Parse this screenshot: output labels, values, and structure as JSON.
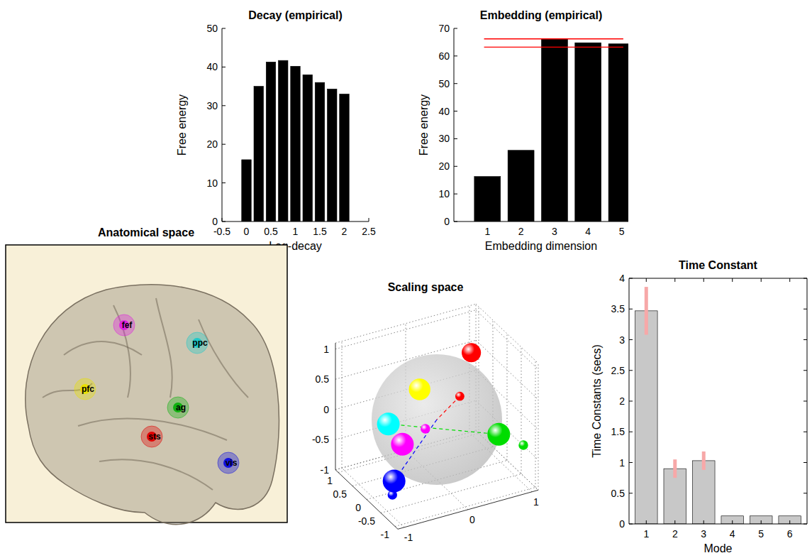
{
  "chart_data": [
    {
      "type": "bar",
      "title": "Decay (empirical)",
      "x_label": "Log-decay",
      "y_label": "Free energy",
      "x": [
        0,
        0.25,
        0.5,
        0.75,
        1,
        1.25,
        1.5,
        1.75,
        2
      ],
      "values": [
        16,
        35,
        41.3,
        41.7,
        40.2,
        38,
        36,
        34.3,
        33
      ],
      "color": "#000000",
      "xlim": [
        -0.5,
        2.5
      ],
      "xticks": [
        -0.5,
        0,
        0.5,
        1,
        1.5,
        2,
        2.5
      ],
      "ylim": [
        0,
        50
      ],
      "yticks": [
        0,
        10,
        20,
        30,
        40,
        50
      ]
    },
    {
      "type": "bar",
      "title": "Embedding (empirical)",
      "x_label": "Embedding dimension",
      "y_label": "Free energy",
      "x": [
        1,
        2,
        3,
        4,
        5
      ],
      "values": [
        16.3,
        25.8,
        66.2,
        64.8,
        64.4
      ],
      "color": "#000000",
      "xlim": [
        0,
        5.2
      ],
      "xticks": [
        1,
        2,
        3,
        4,
        5
      ],
      "ylim": [
        0,
        70
      ],
      "yticks": [
        0,
        10,
        20,
        30,
        40,
        50,
        60,
        70
      ],
      "reference_lines": [
        {
          "value": 66.2,
          "x": [
            0.9,
            5.05
          ],
          "color": "#ff0000"
        },
        {
          "value": 63.2,
          "x": [
            0.9,
            5.05
          ],
          "color": "#ff0000"
        }
      ]
    },
    {
      "type": "scatter3d",
      "title": "Scaling space",
      "xlim": [
        -1.1,
        1.1
      ],
      "ylim": [
        -1.1,
        1.1
      ],
      "zlim": [
        -1,
        1.1
      ],
      "xticks": [
        -1,
        -0.5,
        0,
        0.5,
        1
      ],
      "yticks": [
        -1,
        0,
        1
      ],
      "zticks": [
        -1,
        -0.5,
        0,
        0.5,
        1
      ],
      "points": [
        {
          "color": "#ff0000",
          "x": 0,
          "y": 0.36,
          "z": 0.28,
          "size": 0.4
        },
        {
          "color": "#ff00ff",
          "x": 0,
          "y": -0.18,
          "z": -0.1,
          "size": 0.42
        },
        {
          "color": "#00dd00",
          "x": -0.8,
          "y": 1.0,
          "z": -0.36,
          "size": 0.42
        },
        {
          "color": "#0000ff",
          "x": -0.3,
          "y": -0.83,
          "z": -0.87,
          "size": 0.42
        },
        {
          "color": "#ff0000",
          "x": 0,
          "y": 0.54,
          "z": 0.95,
          "size": 0.85
        },
        {
          "color": "#ffff00",
          "x": 0,
          "y": -0.27,
          "z": 0.58,
          "size": 0.95
        },
        {
          "color": "#00ffff",
          "x": 0,
          "y": -0.76,
          "z": 0.15,
          "size": 1
        },
        {
          "color": "#ff00ff",
          "x": 0,
          "y": -0.54,
          "z": -0.25,
          "size": 1
        },
        {
          "color": "#00dd00",
          "x": 0,
          "y": 0.97,
          "z": -0.53,
          "size": 1
        },
        {
          "color": "#0000ff",
          "x": 0,
          "y": -0.67,
          "z": -0.82,
          "size": 1
        }
      ],
      "dashed_lines": [
        {
          "from": [
            0,
            0.36,
            0.28
          ],
          "to": [
            0,
            0,
            0
          ],
          "color": "#ff0000"
        },
        {
          "from": [
            0,
            0,
            0
          ],
          "to": [
            0,
            -0.67,
            -0.82
          ],
          "color": "#0000ff"
        },
        {
          "from": [
            0,
            -0.76,
            0.15
          ],
          "to": [
            0,
            0.97,
            -0.53
          ],
          "color": "#00dd00"
        }
      ]
    },
    {
      "type": "bar",
      "title": "Time Constant",
      "x_label": "Mode",
      "y_label": "Time Constants (secs)",
      "x": [
        1,
        2,
        3,
        4,
        5,
        6
      ],
      "values": [
        3.47,
        0.9,
        1.03,
        0.13,
        0.13,
        0.13
      ],
      "errors": [
        0.39,
        0.15,
        0.15,
        null,
        null,
        null
      ],
      "error_color": "#f7a8a8",
      "color": "#c8c8c8",
      "xlim": [
        0.4,
        6.6
      ],
      "xticks": [
        1,
        2,
        3,
        4,
        5,
        6
      ],
      "ylim": [
        0,
        4
      ],
      "yticks": [
        0,
        0.5,
        1,
        1.5,
        2,
        2.5,
        3,
        3.5,
        4
      ]
    }
  ],
  "anatomical_space": {
    "title": "Anatomical space",
    "regions": [
      {
        "label": "fef",
        "color": "#e020e0"
      },
      {
        "label": "ppc",
        "color": "#20c8c8"
      },
      {
        "label": "pfc",
        "color": "#e8e000"
      },
      {
        "label": "ag",
        "color": "#10b010"
      },
      {
        "label": "sts",
        "color": "#e00000"
      },
      {
        "label": "vis",
        "color": "#1010e0"
      }
    ]
  }
}
